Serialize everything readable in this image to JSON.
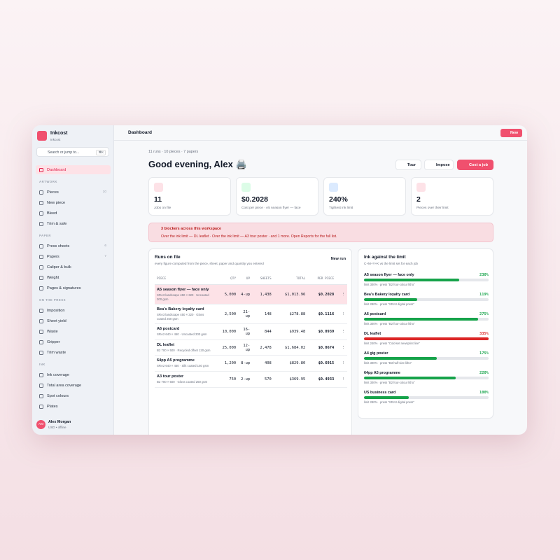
{
  "app": {
    "name": "Inkcost",
    "subtitle": "Inkcost",
    "search": "Search or jump to...",
    "shortcut": "⌘K"
  },
  "nav": [
    {
      "title": null,
      "items": [
        {
          "label": "Dashboard",
          "count": null,
          "active": true
        }
      ]
    },
    {
      "title": "ARTWORK",
      "items": [
        {
          "label": "Pieces",
          "count": "10"
        },
        {
          "label": "New piece",
          "count": null
        },
        {
          "label": "Bleed",
          "count": null
        },
        {
          "label": "Trim & safe",
          "count": null
        }
      ]
    },
    {
      "title": "PAPER",
      "items": [
        {
          "label": "Press sheets",
          "count": "6"
        },
        {
          "label": "Papers",
          "count": "7"
        },
        {
          "label": "Caliper & bulk",
          "count": null
        },
        {
          "label": "Weight",
          "count": null
        },
        {
          "label": "Pages & signatures",
          "count": null
        }
      ]
    },
    {
      "title": "ON THE PRESS",
      "items": [
        {
          "label": "Imposition",
          "count": null
        },
        {
          "label": "Sheet yield",
          "count": null
        },
        {
          "label": "Waste",
          "count": null
        },
        {
          "label": "Gripper",
          "count": null
        },
        {
          "label": "Trim waste",
          "count": null
        }
      ]
    },
    {
      "title": "INK",
      "items": [
        {
          "label": "Ink coverage",
          "count": null
        },
        {
          "label": "Total area coverage",
          "count": null
        },
        {
          "label": "Spot colours",
          "count": null
        },
        {
          "label": "Plates",
          "count": null
        }
      ]
    }
  ],
  "user": {
    "initials": "AM",
    "name": "Alex Morgan",
    "status": "USD • offline"
  },
  "topbar": {
    "title": "Dashboard",
    "new": "New"
  },
  "header": {
    "meta": "11 runs · 10 pieces · 7 papers",
    "greeting": "Good evening, Alex 🖨️",
    "buttons": [
      "Tour",
      "Impose",
      "Cost a job"
    ]
  },
  "stats": [
    {
      "value": "11",
      "label": "Jobs on file"
    },
    {
      "value": "$0.2028",
      "label": "Cost per piece · A5 season flyer — face"
    },
    {
      "value": "240%",
      "label": "Tightest ink limit"
    },
    {
      "value": "2",
      "label": "Pieces over their limit"
    }
  ],
  "alert": {
    "title": "3 blockers across this workspace",
    "text": "Over the ink limit — DL leaflet · Over the ink limit — A3 tour poster · and 1 more. Open Reports for the full list."
  },
  "runs": {
    "title": "Runs on file",
    "subtitle": "every figure computed from the piece, sheet, paper and quantity you entered",
    "new": "New run",
    "selected_row": 0,
    "columns": [
      "PIECE",
      "QTY",
      "UP",
      "SHEETS",
      "TOTAL",
      "PER PIECE"
    ],
    "rows": [
      {
        "piece": "A5 season flyer — face only",
        "spec": "SRA3 landscape 450 × 320 · Uncoated 300 gsm",
        "qty": "5,000",
        "up": "4-up",
        "sheets": "1,438",
        "total": "$1,013.96",
        "per": "$0.2028"
      },
      {
        "piece": "Bea's Bakery loyalty card",
        "spec": "SRA3 landscape 450 × 320 · Gloss coated 250 gsm",
        "qty": "2,500",
        "up": "21-up",
        "sheets": "148",
        "total": "$278.88",
        "per": "$0.1116"
      },
      {
        "piece": "A6 postcard",
        "spec": "SRA2 640 × 450 · Uncoated 300 gsm",
        "qty": "10,000",
        "up": "16-up",
        "sheets": "844",
        "total": "$939.48",
        "per": "$0.0939"
      },
      {
        "piece": "DL leaflet",
        "spec": "B2 700 × 500 · Recycled offset 120 gsm",
        "qty": "25,000",
        "up": "12-up",
        "sheets": "2,478",
        "total": "$1,684.02",
        "per": "$0.0674"
      },
      {
        "piece": "64pp A5 programme",
        "spec": "SRA2 640 × 450 · Silk coated 150 gsm",
        "qty": "1,200",
        "up": "8-up",
        "sheets": "408",
        "total": "$829.80",
        "per": "$0.6915"
      },
      {
        "piece": "A3 tour poster",
        "spec": "B2 700 × 500 · Gloss coated 250 gsm",
        "qty": "750",
        "up": "2-up",
        "sheets": "570",
        "total": "$369.95",
        "per": "$0.4933"
      }
    ]
  },
  "ink": {
    "title": "Ink against the limit",
    "subtitle": "C+M+Y+K vs the limit set for each job",
    "items": [
      {
        "name": "A5 season flyer — face only",
        "value": 230,
        "value_label": "230%",
        "limit": 300,
        "note": "limit 300% · press \"B2 four-colour litho\"",
        "color": "#16a34a"
      },
      {
        "name": "Bea's Bakery loyalty card",
        "value": 119,
        "value_label": "119%",
        "limit": 280,
        "note": "limit 280% · press \"SRA3 digital press\"",
        "color": "#16a34a"
      },
      {
        "name": "A6 postcard",
        "value": 275,
        "value_label": "275%",
        "limit": 300,
        "note": "limit 300% · press \"B2 four-colour litho\"",
        "color": "#16a34a"
      },
      {
        "name": "DL leaflet",
        "value": 335,
        "value_label": "335%",
        "limit": 240,
        "note": "limit 240% · press \"Cold-set newsprint line\"",
        "color": "#dc2626"
      },
      {
        "name": "A4 gig poster",
        "value": 175,
        "value_label": "175%",
        "limit": 300,
        "note": "limit 300% · press \"B3 half-size litho\"",
        "color": "#16a34a"
      },
      {
        "name": "64pp A5 programme",
        "value": 220,
        "value_label": "220%",
        "limit": 300,
        "note": "limit 300% · press \"B2 four-colour litho\"",
        "color": "#16a34a"
      },
      {
        "name": "US business card",
        "value": 100,
        "value_label": "100%",
        "limit": 280,
        "note": "limit 280% · press \"SRA3 digital press\"",
        "color": "#16a34a"
      }
    ]
  }
}
